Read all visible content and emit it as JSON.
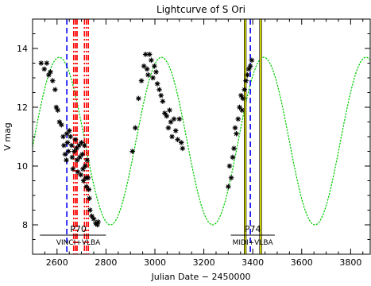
{
  "chart_data": {
    "type": "scatter",
    "title": "Lightcurve of S Ori",
    "xlabel": "Julian Date − 2450000",
    "ylabel": "V mag",
    "xlim": [
      2500,
      3880
    ],
    "ylim": [
      7.0,
      15.0
    ],
    "x_ticks": [
      2600,
      2800,
      3000,
      3200,
      3400,
      3600,
      3800
    ],
    "x_tick_labels": [
      "2600",
      "2800",
      "3000",
      "3200",
      "3400",
      "3600",
      "3800"
    ],
    "y_ticks": [
      8,
      10,
      12,
      14
    ],
    "y_tick_labels": [
      "8",
      "10",
      "12",
      "14"
    ],
    "grid": false,
    "legend": "none",
    "series": [
      {
        "role": "observations",
        "marker": "asterisk",
        "color": "#000000",
        "points": [
          [
            2535,
            13.5
          ],
          [
            2548,
            13.3
          ],
          [
            2558,
            13.5
          ],
          [
            2566,
            13.1
          ],
          [
            2573,
            13.2
          ],
          [
            2582,
            12.9
          ],
          [
            2592,
            12.6
          ],
          [
            2597,
            12.0
          ],
          [
            2603,
            11.9
          ],
          [
            2610,
            11.5
          ],
          [
            2618,
            11.4
          ],
          [
            2625,
            11.0
          ],
          [
            2628,
            10.7
          ],
          [
            2633,
            10.4
          ],
          [
            2638,
            10.2
          ],
          [
            2640,
            11.1
          ],
          [
            2643,
            10.8
          ],
          [
            2647,
            10.5
          ],
          [
            2650,
            11.2
          ],
          [
            2655,
            11.0
          ],
          [
            2660,
            10.7
          ],
          [
            2662,
            10.3
          ],
          [
            2665,
            9.9
          ],
          [
            2670,
            10.5
          ],
          [
            2675,
            10.9
          ],
          [
            2680,
            10.6
          ],
          [
            2682,
            10.2
          ],
          [
            2685,
            9.8
          ],
          [
            2690,
            10.7
          ],
          [
            2693,
            10.3
          ],
          [
            2697,
            9.7
          ],
          [
            2700,
            10.8
          ],
          [
            2703,
            10.4
          ],
          [
            2706,
            9.9
          ],
          [
            2708,
            9.5
          ],
          [
            2712,
            10.7
          ],
          [
            2715,
            10.0
          ],
          [
            2718,
            9.6
          ],
          [
            2720,
            9.3
          ],
          [
            2723,
            10.2
          ],
          [
            2727,
            9.6
          ],
          [
            2730,
            9.2
          ],
          [
            2732,
            8.9
          ],
          [
            2735,
            8.5
          ],
          [
            2742,
            8.3
          ],
          [
            2750,
            8.2
          ],
          [
            2758,
            8.05
          ],
          [
            2765,
            8.0
          ],
          [
            2768,
            8.1
          ],
          [
            2908,
            10.5
          ],
          [
            2920,
            11.3
          ],
          [
            2933,
            12.3
          ],
          [
            2945,
            12.9
          ],
          [
            2955,
            13.4
          ],
          [
            2962,
            13.8
          ],
          [
            2968,
            13.3
          ],
          [
            2972,
            13.1
          ],
          [
            2978,
            13.8
          ],
          [
            2985,
            13.6
          ],
          [
            2992,
            13.0
          ],
          [
            2998,
            13.4
          ],
          [
            3005,
            13.2
          ],
          [
            3010,
            12.8
          ],
          [
            3018,
            12.6
          ],
          [
            3025,
            12.4
          ],
          [
            3032,
            12.2
          ],
          [
            3040,
            11.8
          ],
          [
            3048,
            11.7
          ],
          [
            3055,
            11.3
          ],
          [
            3060,
            11.9
          ],
          [
            3065,
            11.5
          ],
          [
            3070,
            11.0
          ],
          [
            3078,
            11.6
          ],
          [
            3085,
            11.2
          ],
          [
            3093,
            10.9
          ],
          [
            3100,
            11.6
          ],
          [
            3108,
            10.8
          ],
          [
            3113,
            10.6
          ],
          [
            3300,
            9.3
          ],
          [
            3305,
            10.0
          ],
          [
            3312,
            9.6
          ],
          [
            3318,
            10.3
          ],
          [
            3323,
            10.6
          ],
          [
            3328,
            11.3
          ],
          [
            3333,
            11.1
          ],
          [
            3340,
            11.6
          ],
          [
            3346,
            12.0
          ],
          [
            3352,
            12.4
          ],
          [
            3356,
            11.9
          ],
          [
            3360,
            12.3
          ],
          [
            3366,
            12.6
          ],
          [
            3372,
            12.9
          ],
          [
            3378,
            13.1
          ],
          [
            3384,
            13.3
          ],
          [
            3390,
            13.4
          ],
          [
            3396,
            13.6
          ]
        ]
      },
      {
        "role": "model-fit",
        "line": "dotted",
        "color": "#00cc00",
        "model": {
          "shape": "sinusoid",
          "period_days": 418,
          "max_mag": 13.7,
          "min_mag": 8.0,
          "jd_of_max": 3445
        }
      }
    ],
    "vertical_markers": [
      {
        "x": 2640,
        "color": "#0000ff",
        "style": "dashed"
      },
      {
        "x": 2668,
        "color": "#ff0000",
        "style": "dash-dot"
      },
      {
        "x": 2676,
        "color": "#ff0000",
        "style": "dash-dot"
      },
      {
        "x": 2682,
        "color": "#ff0000",
        "style": "dash-dot"
      },
      {
        "x": 2712,
        "color": "#ff0000",
        "style": "dash-dot"
      },
      {
        "x": 2720,
        "color": "#ff0000",
        "style": "dash-dot"
      },
      {
        "x": 2728,
        "color": "#ff0000",
        "style": "dash-dot"
      },
      {
        "x": 3369,
        "color": "#ffff00",
        "style": "solid",
        "outline": "#000000"
      },
      {
        "x": 3390,
        "color": "#0000ff",
        "style": "dashed"
      },
      {
        "x": 3432,
        "color": "#ffff00",
        "style": "solid",
        "outline": "#000000"
      }
    ],
    "annotations": [
      {
        "label": "P70",
        "sublabel": "VINCI+VLBA",
        "x_center": 2687,
        "x_from": 2530,
        "x_to": 2800
      },
      {
        "label": "P74",
        "sublabel": "MIDI+VLBA",
        "x_center": 3400,
        "x_from": 3310,
        "x_to": 3490
      }
    ]
  }
}
